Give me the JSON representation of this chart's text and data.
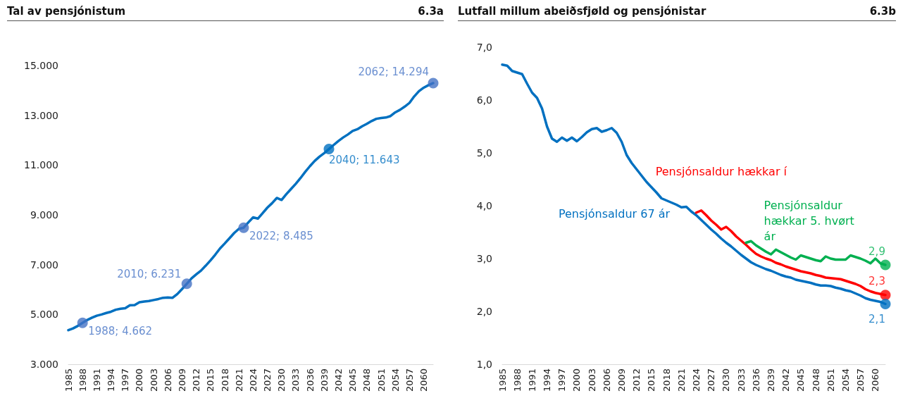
{
  "chart_data": [
    {
      "type": "line",
      "title": "Tal av pensjónistum",
      "subtitle": "6.3a",
      "legend": false,
      "grid": false,
      "line_style": "solid",
      "x": [
        1985,
        1986,
        1987,
        1988,
        1989,
        1990,
        1991,
        1992,
        1993,
        1994,
        1995,
        1996,
        1997,
        1998,
        1999,
        2000,
        2001,
        2002,
        2003,
        2004,
        2005,
        2006,
        2007,
        2008,
        2009,
        2010,
        2011,
        2012,
        2013,
        2014,
        2015,
        2016,
        2017,
        2018,
        2019,
        2020,
        2021,
        2022,
        2023,
        2024,
        2025,
        2026,
        2027,
        2028,
        2029,
        2030,
        2031,
        2032,
        2033,
        2034,
        2035,
        2036,
        2037,
        2038,
        2039,
        2040,
        2041,
        2042,
        2043,
        2044,
        2045,
        2046,
        2047,
        2048,
        2049,
        2050,
        2051,
        2052,
        2053,
        2054,
        2055,
        2056,
        2057,
        2058,
        2059,
        2060,
        2061,
        2062
      ],
      "xlim": [
        1985,
        2062
      ],
      "xticks": [
        1985,
        1988,
        1991,
        1994,
        1997,
        2000,
        2003,
        2006,
        2009,
        2012,
        2015,
        2018,
        2021,
        2024,
        2027,
        2030,
        2033,
        2036,
        2039,
        2042,
        2045,
        2048,
        2051,
        2054,
        2057,
        2060
      ],
      "ylim": [
        3000,
        15000
      ],
      "yticks": [
        {
          "value": 3000,
          "label": "3.000"
        },
        {
          "value": 5000,
          "label": "5.000"
        },
        {
          "value": 7000,
          "label": "7.000"
        },
        {
          "value": 9000,
          "label": "9.000"
        },
        {
          "value": 11000,
          "label": "11.000"
        },
        {
          "value": 13000,
          "label": "13.000"
        },
        {
          "value": 15000,
          "label": "15.000"
        }
      ],
      "series": [
        {
          "color": "#0070c0",
          "values": [
            4370,
            4440,
            4540,
            4662,
            4780,
            4870,
            4950,
            5000,
            5060,
            5110,
            5190,
            5230,
            5250,
            5370,
            5380,
            5490,
            5520,
            5540,
            5580,
            5620,
            5670,
            5680,
            5670,
            5820,
            6020,
            6231,
            6450,
            6610,
            6760,
            6960,
            7170,
            7400,
            7650,
            7850,
            8060,
            8270,
            8440,
            8485,
            8700,
            8900,
            8850,
            9070,
            9290,
            9470,
            9680,
            9600,
            9830,
            10040,
            10250,
            10480,
            10730,
            10960,
            11170,
            11340,
            11480,
            11643,
            11810,
            11970,
            12110,
            12230,
            12370,
            12440,
            12560,
            12660,
            12770,
            12860,
            12890,
            12910,
            12970,
            13120,
            13220,
            13350,
            13500,
            13760,
            13970,
            14110,
            14210,
            14294
          ]
        },
        {
          "type": "scatter",
          "marker": "circle",
          "x": [
            1988,
            2010,
            2022,
            2040,
            2062
          ],
          "colors": [
            "#4472c4",
            "#4472c4",
            "#4472c4",
            "#0070c0",
            "#4472c4"
          ],
          "values": [
            4662,
            6231,
            8485,
            11643,
            14294
          ],
          "value_labels": [
            "1988; 4.662",
            "2010; 6.231",
            "2022; 8.485",
            "2040; 11.643",
            "2062; 14.294"
          ]
        }
      ]
    },
    {
      "type": "line",
      "title": "Lutfall millum abeiðsfjøld og pensjónistar",
      "subtitle": "6.3b",
      "legend": false,
      "grid": false,
      "line_style": "solid",
      "xlim": [
        1985,
        2062
      ],
      "xticks": [
        1985,
        1988,
        1991,
        1994,
        1997,
        2000,
        2003,
        2006,
        2009,
        2012,
        2015,
        2018,
        2021,
        2024,
        2027,
        2030,
        2033,
        2036,
        2039,
        2042,
        2045,
        2048,
        2051,
        2054,
        2057,
        2060
      ],
      "ylim": [
        1,
        7
      ],
      "yticks": [
        {
          "value": 1,
          "label": "1,0"
        },
        {
          "value": 2,
          "label": "2,0"
        },
        {
          "value": 3,
          "label": "3,0"
        },
        {
          "value": 4,
          "label": "4,0"
        },
        {
          "value": 5,
          "label": "5,0"
        },
        {
          "value": 6,
          "label": "6,0"
        },
        {
          "value": 7,
          "label": "7,0"
        }
      ],
      "series": [
        {
          "name": "Pensjónsaldur 67 ár",
          "color": "#0070c0",
          "x": [
            1985,
            1986,
            1987,
            1988,
            1989,
            1990,
            1991,
            1992,
            1993,
            1994,
            1995,
            1996,
            1997,
            1998,
            1999,
            2000,
            2001,
            2002,
            2003,
            2004,
            2005,
            2006,
            2007,
            2008,
            2009,
            2010,
            2011,
            2012,
            2013,
            2014,
            2015,
            2016,
            2017,
            2018,
            2019,
            2020,
            2021,
            2022,
            2023,
            2024,
            2025,
            2026,
            2027,
            2028,
            2029,
            2030,
            2031,
            2032,
            2033,
            2034,
            2035,
            2036,
            2037,
            2038,
            2039,
            2040,
            2041,
            2042,
            2043,
            2044,
            2045,
            2046,
            2047,
            2048,
            2049,
            2050,
            2051,
            2052,
            2053,
            2054,
            2055,
            2056,
            2057,
            2058,
            2059,
            2060,
            2061,
            2062
          ],
          "values": [
            6.67,
            6.65,
            6.55,
            6.52,
            6.49,
            6.31,
            6.14,
            6.04,
            5.84,
            5.5,
            5.27,
            5.21,
            5.29,
            5.23,
            5.29,
            5.22,
            5.3,
            5.39,
            5.45,
            5.47,
            5.4,
            5.43,
            5.47,
            5.38,
            5.21,
            4.96,
            4.81,
            4.69,
            4.57,
            4.45,
            4.35,
            4.25,
            4.14,
            4.1,
            4.06,
            4.02,
            3.97,
            3.98,
            3.89,
            3.82,
            3.73,
            3.64,
            3.55,
            3.47,
            3.38,
            3.3,
            3.23,
            3.15,
            3.07,
            3,
            2.93,
            2.88,
            2.84,
            2.8,
            2.77,
            2.73,
            2.69,
            2.66,
            2.64,
            2.6,
            2.58,
            2.56,
            2.54,
            2.51,
            2.49,
            2.49,
            2.48,
            2.45,
            2.43,
            2.4,
            2.38,
            2.34,
            2.3,
            2.25,
            2.22,
            2.2,
            2.18,
            2.14
          ]
        },
        {
          "name": "Pensjónsaldur hækkar í",
          "color": "#ff0000",
          "x": [
            2024,
            2025,
            2026,
            2027,
            2028,
            2029,
            2030,
            2031,
            2032,
            2033,
            2034,
            2035,
            2036,
            2037,
            2038,
            2039,
            2040,
            2041,
            2042,
            2043,
            2044,
            2045,
            2046,
            2047,
            2048,
            2049,
            2050,
            2051,
            2052,
            2053,
            2054,
            2055,
            2056,
            2057,
            2058,
            2059,
            2060,
            2061,
            2062
          ],
          "values": [
            3.87,
            3.91,
            3.82,
            3.72,
            3.64,
            3.55,
            3.6,
            3.52,
            3.42,
            3.34,
            3.26,
            3.17,
            3.09,
            3.04,
            3,
            2.97,
            2.92,
            2.89,
            2.85,
            2.82,
            2.79,
            2.76,
            2.74,
            2.72,
            2.69,
            2.67,
            2.64,
            2.63,
            2.62,
            2.61,
            2.58,
            2.55,
            2.52,
            2.48,
            2.42,
            2.38,
            2.35,
            2.33,
            2.31
          ]
        },
        {
          "name": "Pensjónsaldur hækkar 5. hvørt ár",
          "color": "#00b050",
          "x": [
            2034,
            2035,
            2036,
            2037,
            2038,
            2039,
            2040,
            2041,
            2042,
            2043,
            2044,
            2045,
            2046,
            2047,
            2048,
            2049,
            2050,
            2051,
            2052,
            2053,
            2054,
            2055,
            2056,
            2057,
            2058,
            2059,
            2060,
            2061,
            2062
          ],
          "values": [
            3.3,
            3.33,
            3.25,
            3.19,
            3.13,
            3.08,
            3.17,
            3.12,
            3.07,
            3.02,
            2.98,
            3.06,
            3.03,
            3,
            2.97,
            2.95,
            3.04,
            3,
            2.98,
            2.98,
            2.98,
            3.06,
            3.03,
            3,
            2.96,
            2.91,
            3,
            2.91,
            2.88
          ]
        },
        {
          "type": "scatter",
          "marker": "circle",
          "x": [
            2062,
            2062,
            2062
          ],
          "colors": [
            "#00b050",
            "#ff0000",
            "#0070c0"
          ],
          "values": [
            2.88,
            2.31,
            2.14
          ],
          "value_labels": [
            "2,9",
            "2,3",
            "2,1"
          ]
        }
      ]
    }
  ]
}
